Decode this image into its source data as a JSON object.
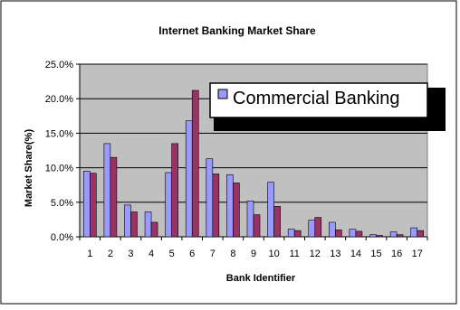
{
  "chart_data": {
    "type": "bar",
    "title": "Internet Banking Market Share",
    "xlabel": "Bank Identifier",
    "ylabel": "Market Share(%)",
    "ylim": [
      0,
      25
    ],
    "y_ticks": [
      "0.0%",
      "5.0%",
      "10.0%",
      "15.0%",
      "20.0%",
      "25.0%"
    ],
    "categories": [
      "1",
      "2",
      "3",
      "4",
      "5",
      "6",
      "7",
      "8",
      "9",
      "10",
      "11",
      "12",
      "13",
      "14",
      "15",
      "16",
      "17"
    ],
    "grid": true,
    "legend": {
      "placement": "top-right"
    },
    "series": [
      {
        "name": "Commercial Banking",
        "color": "#9999ff",
        "values": [
          9.5,
          13.5,
          4.6,
          3.6,
          9.3,
          16.8,
          11.3,
          9.0,
          5.2,
          7.9,
          1.1,
          2.4,
          2.1,
          1.1,
          0.3,
          0.7,
          1.3
        ]
      },
      {
        "name": "",
        "color": "#993366",
        "values": [
          9.2,
          11.5,
          3.6,
          2.1,
          13.5,
          21.2,
          9.1,
          7.8,
          3.2,
          4.4,
          0.9,
          2.8,
          1.0,
          0.8,
          0.2,
          0.3,
          0.9
        ]
      }
    ]
  },
  "colors": {
    "plot_bg": "#c0c0c0",
    "grid": "#000000"
  }
}
